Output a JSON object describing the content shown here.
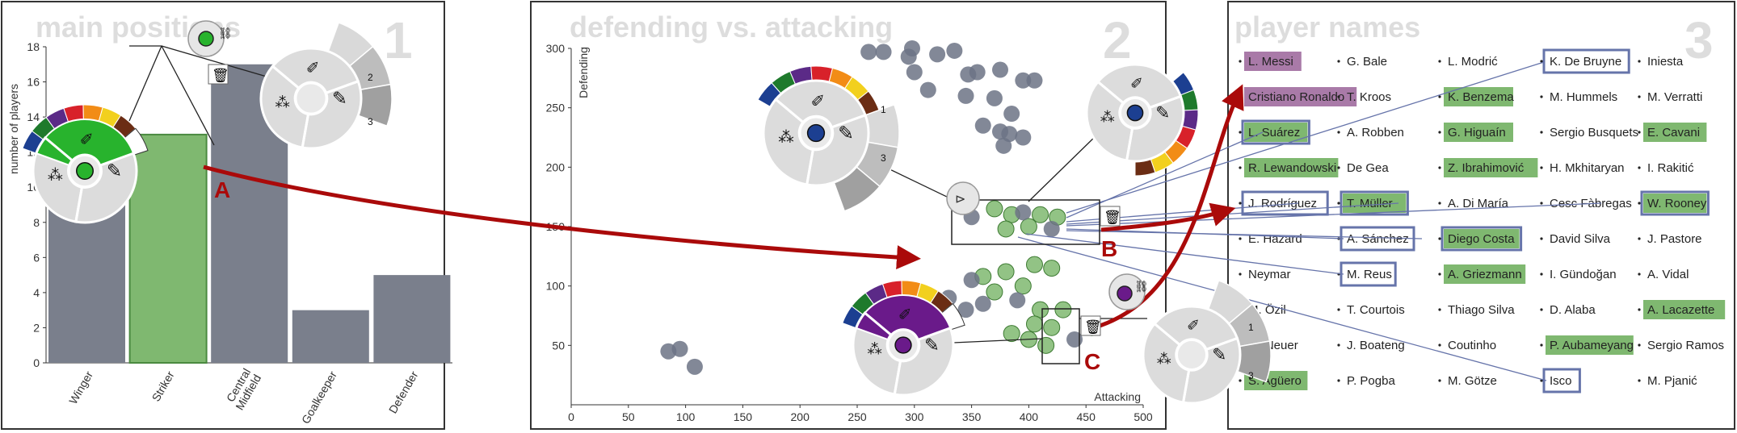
{
  "panels": [
    {
      "number": "1",
      "title": "main positions"
    },
    {
      "number": "2",
      "title": "defending vs. attacking"
    },
    {
      "number": "3",
      "title": "player names"
    }
  ],
  "annotations": {
    "a": "A",
    "b": "B",
    "c": "C"
  },
  "menu": {
    "list_level_1": "1",
    "list_level_2": "2",
    "list_level_3": "3"
  },
  "colors": {
    "highlight_green": "#7fb870",
    "highlight_purple": "#a97aa8",
    "dot_gray": "#6c7385",
    "bar_gray": "#7a7f8c",
    "arrow_red": "#aa0a0a",
    "link_blue": "#6674aa",
    "menu_green": "#28b32d",
    "menu_purple": "#6a1a8a",
    "palette": [
      "#1c3f91",
      "#1e7a2c",
      "#5b2a87",
      "#d8212a",
      "#f28c16",
      "#f2d01e",
      "#6b2d14"
    ]
  },
  "chart_data": [
    {
      "type": "bar",
      "categories": [
        "Winger",
        "Striker",
        "Central Midfield",
        "Goalkeeper",
        "Defender"
      ],
      "values": [
        13,
        13,
        17,
        3,
        5
      ],
      "highlighted": [
        "Striker"
      ],
      "ylabel": "number of players",
      "ylim": [
        0,
        18
      ],
      "yticks": [
        0,
        2,
        4,
        6,
        8,
        10,
        12,
        14,
        16,
        18
      ]
    },
    {
      "type": "scatter",
      "xlabel": "Attacking",
      "ylabel": "Defending",
      "xlim": [
        0,
        500
      ],
      "ylim": [
        0,
        300
      ],
      "xticks": [
        0,
        50,
        100,
        150,
        200,
        250,
        300,
        350,
        400,
        450,
        500
      ],
      "yticks": [
        50,
        100,
        150,
        200,
        250,
        300
      ],
      "points": [
        {
          "x": 260,
          "y": 297
        },
        {
          "x": 273,
          "y": 297
        },
        {
          "x": 298,
          "y": 300
        },
        {
          "x": 295,
          "y": 293
        },
        {
          "x": 320,
          "y": 295
        },
        {
          "x": 335,
          "y": 298
        },
        {
          "x": 300,
          "y": 280
        },
        {
          "x": 355,
          "y": 280
        },
        {
          "x": 347,
          "y": 278
        },
        {
          "x": 375,
          "y": 282
        },
        {
          "x": 395,
          "y": 273
        },
        {
          "x": 405,
          "y": 273
        },
        {
          "x": 312,
          "y": 265
        },
        {
          "x": 345,
          "y": 260
        },
        {
          "x": 370,
          "y": 258
        },
        {
          "x": 385,
          "y": 245
        },
        {
          "x": 360,
          "y": 235
        },
        {
          "x": 375,
          "y": 230
        },
        {
          "x": 383,
          "y": 228
        },
        {
          "x": 395,
          "y": 225
        },
        {
          "x": 378,
          "y": 218
        },
        {
          "x": 370,
          "y": 165,
          "group": "green"
        },
        {
          "x": 385,
          "y": 160,
          "group": "green"
        },
        {
          "x": 410,
          "y": 160,
          "group": "green"
        },
        {
          "x": 425,
          "y": 158,
          "group": "green"
        },
        {
          "x": 400,
          "y": 150,
          "group": "green"
        },
        {
          "x": 380,
          "y": 148,
          "group": "green"
        },
        {
          "x": 350,
          "y": 158
        },
        {
          "x": 420,
          "y": 148
        },
        {
          "x": 395,
          "y": 162
        },
        {
          "x": 405,
          "y": 118,
          "group": "green"
        },
        {
          "x": 380,
          "y": 112,
          "group": "green"
        },
        {
          "x": 360,
          "y": 108,
          "group": "green"
        },
        {
          "x": 420,
          "y": 115,
          "group": "green"
        },
        {
          "x": 395,
          "y": 100,
          "group": "green"
        },
        {
          "x": 370,
          "y": 95,
          "group": "green"
        },
        {
          "x": 350,
          "y": 105
        },
        {
          "x": 390,
          "y": 88
        },
        {
          "x": 360,
          "y": 85
        },
        {
          "x": 410,
          "y": 80,
          "group": "green"
        },
        {
          "x": 430,
          "y": 80,
          "group": "green"
        },
        {
          "x": 405,
          "y": 68,
          "group": "green"
        },
        {
          "x": 420,
          "y": 65,
          "group": "green"
        },
        {
          "x": 385,
          "y": 60,
          "group": "green"
        },
        {
          "x": 400,
          "y": 55,
          "group": "green"
        },
        {
          "x": 415,
          "y": 50,
          "group": "green"
        },
        {
          "x": 440,
          "y": 55
        },
        {
          "x": 345,
          "y": 80
        },
        {
          "x": 330,
          "y": 90
        },
        {
          "x": 455,
          "y": 65,
          "group": "purple"
        },
        {
          "x": 85,
          "y": 45
        },
        {
          "x": 95,
          "y": 47
        },
        {
          "x": 108,
          "y": 32
        }
      ]
    }
  ],
  "players": [
    [
      "L. Messi",
      "G. Bale",
      "L. Modrić",
      "K. De Bruyne",
      "Iniesta"
    ],
    [
      "Cristiano Ronaldo",
      "T. Kroos",
      "K. Benzema",
      "M. Hummels",
      "M. Verratti"
    ],
    [
      "L. Suárez",
      "A. Robben",
      "G. Higuaín",
      "Sergio Busquets",
      "E. Cavani"
    ],
    [
      "R. Lewandowski",
      "De Gea",
      "Z. Ibrahimović",
      "H. Mkhitaryan",
      "I. Rakitić"
    ],
    [
      "J. Rodríguez",
      "T. Müller",
      "A. Di María",
      "Cesc Fàbregas",
      "W. Rooney"
    ],
    [
      "E. Hazard",
      "A. Sánchez",
      "Diego Costa",
      "David Silva",
      "J. Pastore"
    ],
    [
      "Neymar",
      "M. Reus",
      "A. Griezmann",
      "I. Gündoğan",
      "A. Vidal"
    ],
    [
      "M. Özil",
      "T. Courtois",
      "Thiago Silva",
      "D. Alaba",
      "A. Lacazette"
    ],
    [
      "M. Neuer",
      "J. Boateng",
      "Coutinho",
      "P. Aubameyang",
      "Sergio Ramos"
    ],
    [
      "S. Agüero",
      "P. Pogba",
      "M. Götze",
      "Isco",
      "M. Pjanić"
    ]
  ],
  "player_highlights": {
    "purple": [
      "L. Messi",
      "Cristiano Ronaldo"
    ],
    "green": [
      "K. Benzema",
      "L. Suárez",
      "G. Higuaín",
      "E. Cavani",
      "R. Lewandowski",
      "Z. Ibrahimović",
      "T. Müller",
      "W. Rooney",
      "Diego Costa",
      "A. Griezmann",
      "A. Lacazette",
      "P. Aubameyang",
      "S. Agüero"
    ],
    "outlined": [
      "K. De Bruyne",
      "L. Suárez",
      "J. Rodríguez",
      "T. Müller",
      "W. Rooney",
      "A. Sánchez",
      "Diego Costa",
      "M. Reus",
      "Isco"
    ]
  }
}
